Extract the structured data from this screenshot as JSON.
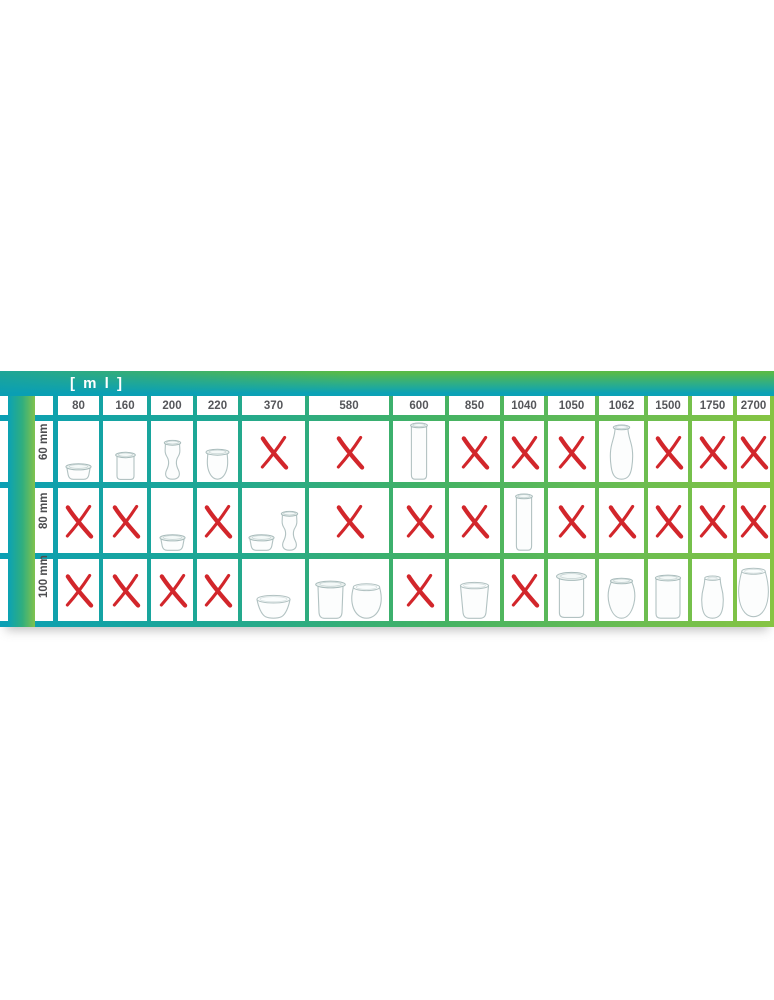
{
  "banner": {
    "unit_label": "[ m l ]"
  },
  "chart_data": {
    "type": "table",
    "title": "[ m l ]",
    "description_visible": "Compatibility matrix of glass jar volumes (ml) versus rim diameter rows (mm); cells show either a jar image or a red X",
    "columns": [
      "80",
      "160",
      "200",
      "220",
      "370",
      "580",
      "600",
      "850",
      "1040",
      "1050",
      "1062",
      "1500",
      "1750",
      "2700"
    ],
    "row_labels": [
      "60 mm",
      "80 mm",
      "100 mm"
    ],
    "cells": [
      [
        [
          "jar-mold-small"
        ],
        [
          "jar-cylinder"
        ],
        [
          "jar-tulip-tall"
        ],
        [
          "jar-tulip"
        ],
        [
          "x"
        ],
        [
          "x"
        ],
        [
          "jar-cylinder-tall"
        ],
        [
          "x"
        ],
        [
          "x"
        ],
        [
          "x"
        ],
        [
          "jar-juice-bottle"
        ],
        [
          "x"
        ],
        [
          "x"
        ],
        [
          "x"
        ]
      ],
      [
        [
          "x"
        ],
        [
          "x"
        ],
        [
          "jar-mold-small"
        ],
        [
          "x"
        ],
        [
          "jar-mold-small",
          "jar-tulip-tall"
        ],
        [
          "x"
        ],
        [
          "x"
        ],
        [
          "x"
        ],
        [
          "jar-cylinder-tall"
        ],
        [
          "x"
        ],
        [
          "x"
        ],
        [
          "x"
        ],
        [
          "x"
        ],
        [
          "x"
        ]
      ],
      [
        [
          "x"
        ],
        [
          "x"
        ],
        [
          "x"
        ],
        [
          "x"
        ],
        [
          "jar-bowl"
        ],
        [
          "jar-mold-medium",
          "jar-tulip-round-open"
        ],
        [
          "x"
        ],
        [
          "jar-beaker"
        ],
        [
          "x"
        ],
        [
          "jar-cylinder-rim"
        ],
        [
          "jar-tulip-round"
        ],
        [
          "jar-cylinder-straight"
        ],
        [
          "jar-bottle-curvy"
        ],
        [
          "jar-tulip-large"
        ]
      ]
    ],
    "colors": {
      "teal": "#0b9fb4",
      "green": "#86c443",
      "x_red": "#d2262b",
      "header_text": "#55565a",
      "row_label_text": "#4c4d50",
      "banner_text": "#ffffff"
    },
    "layout_hints": {
      "grid": "on",
      "gridline_style": "teal-to-green horizontal gradient"
    }
  }
}
